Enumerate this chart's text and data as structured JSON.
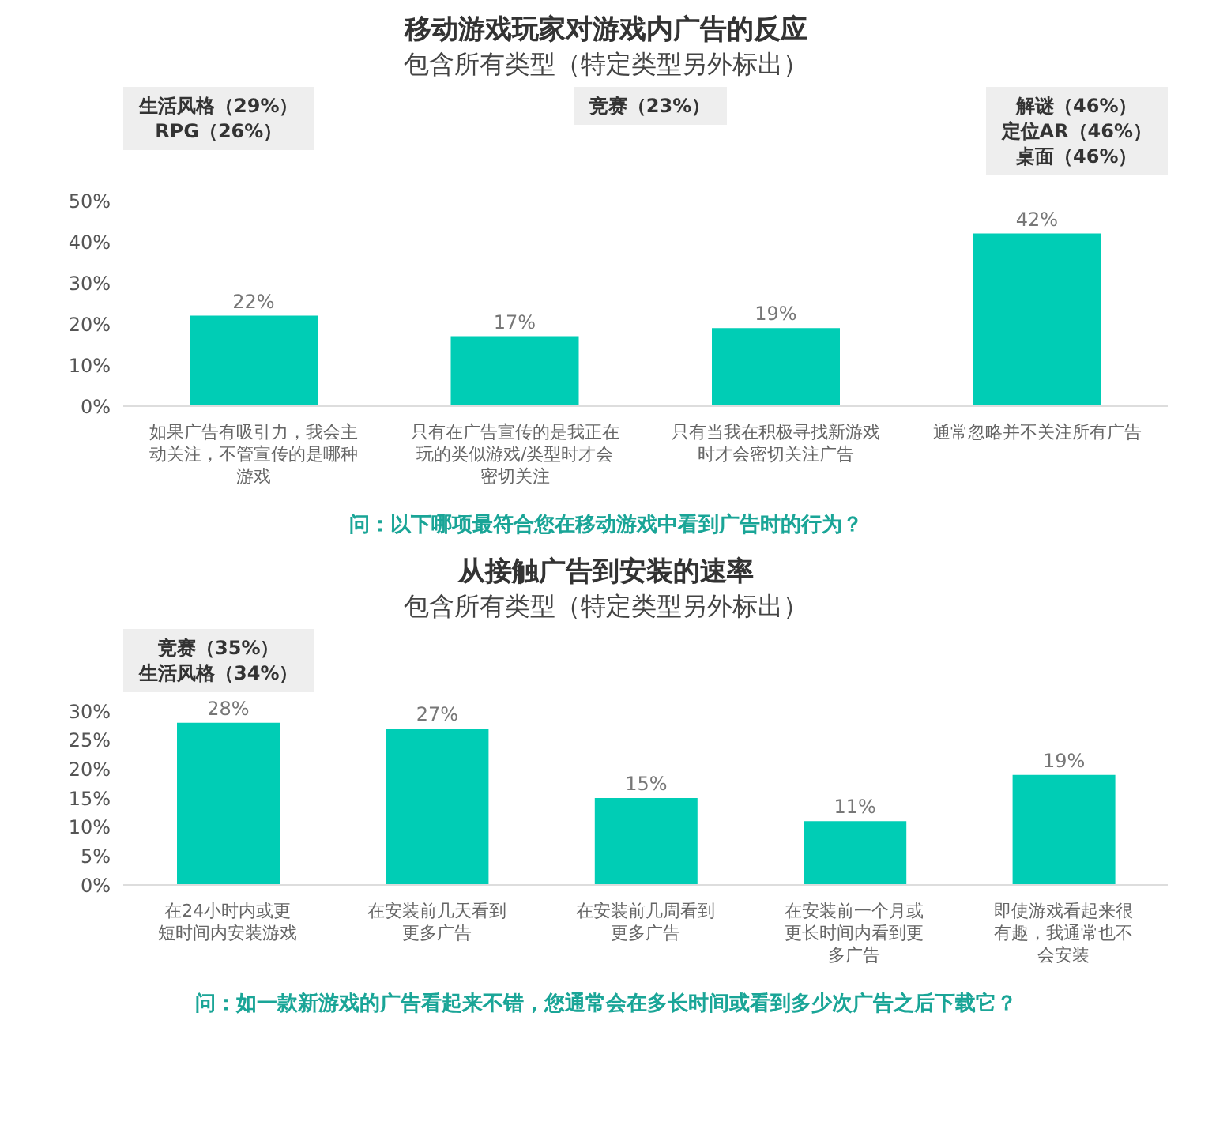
{
  "chart_data": [
    {
      "type": "bar",
      "title": "移动游戏玩家对游戏内广告的反应",
      "subtitle": "包含所有类型（特定类型另外标出）",
      "categories": [
        "如果广告有吸引力，我会主动关注，不管宣传的是哪种游戏",
        "只有在广告宣传的是我正在玩的类似游戏/类型时才会密切关注",
        "只有当我在积极寻找新游戏时才会密切关注广告",
        "通常忽略并不关注所有广告"
      ],
      "values": [
        22,
        17,
        19,
        42
      ],
      "value_labels": [
        "22%",
        "17%",
        "19%",
        "42%"
      ],
      "color": "#00cdb5",
      "ylim": [
        0,
        50
      ],
      "yticks": [
        {
          "value": 0,
          "label": "0%"
        },
        {
          "value": 10,
          "label": "10%"
        },
        {
          "value": 20,
          "label": "20%"
        },
        {
          "value": 30,
          "label": "30%"
        },
        {
          "value": 40,
          "label": "40%"
        },
        {
          "value": 50,
          "label": "50%"
        }
      ],
      "grid": false,
      "legend": false,
      "annotations": [
        "生活风格（29%）RPG（26%）",
        "竞赛（23%）",
        "解谜（46%）定位AR（46%）桌面（46%）",
        "问：以下哪项最符合您在移动游戏中看到广告时的行为？"
      ]
    },
    {
      "type": "bar",
      "title": "从接触广告到安装的速率",
      "subtitle": "包含所有类型（特定类型另外标出）",
      "categories": [
        "在24小时内或更短时间内安装游戏",
        "在安装前几天看到更多广告",
        "在安装前几周看到更多广告",
        "在安装前一个月或更长时间内看到更多广告",
        "即使游戏看起来很有趣，我通常也不会安装"
      ],
      "values": [
        28,
        27,
        15,
        11,
        19
      ],
      "value_labels": [
        "28%",
        "27%",
        "15%",
        "11%",
        "19%"
      ],
      "color": "#00cdb5",
      "ylim": [
        0,
        30
      ],
      "yticks": [
        {
          "value": 0,
          "label": "0%"
        },
        {
          "value": 5,
          "label": "5%"
        },
        {
          "value": 10,
          "label": "10%"
        },
        {
          "value": 15,
          "label": "15%"
        },
        {
          "value": 20,
          "label": "20%"
        },
        {
          "value": 25,
          "label": "25%"
        },
        {
          "value": 30,
          "label": "30%"
        }
      ],
      "grid": false,
      "legend": false,
      "annotations": [
        "竞赛（35%）生活风格（34%）",
        "问：如一款新游戏的广告看起来不错，您通常会在多长时间或看到多少次广告之后下载它？"
      ]
    }
  ]
}
